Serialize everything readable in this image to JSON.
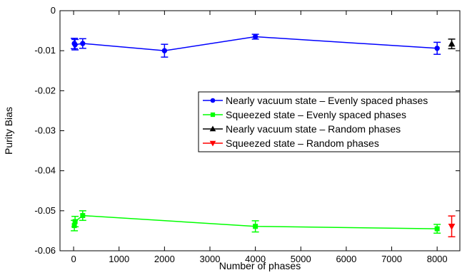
{
  "chart_data": {
    "type": "line",
    "title": "",
    "xlabel": "Number of phases",
    "ylabel": "Purity Bias",
    "xlim": [
      -300,
      8500
    ],
    "ylim": [
      -0.06,
      0
    ],
    "x_ticks": [
      0,
      1000,
      2000,
      3000,
      4000,
      5000,
      6000,
      7000,
      8000
    ],
    "y_ticks": [
      0,
      -0.01,
      -0.02,
      -0.03,
      -0.04,
      -0.05,
      -0.06
    ],
    "x_tick_labels": [
      "0",
      "1000",
      "2000",
      "3000",
      "4000",
      "5000",
      "6000",
      "7000",
      "8000"
    ],
    "y_tick_labels": [
      "0",
      "-0.01",
      "-0.02",
      "-0.03",
      "-0.04",
      "-0.05",
      "-0.06"
    ],
    "grid": false,
    "legend_position": "center-right",
    "series": [
      {
        "name": "Nearly vacuum state – Evenly spaced phases",
        "color": "#0000ff",
        "marker": "circle",
        "line": true,
        "x": [
          16,
          32,
          200,
          2000,
          4000,
          8000
        ],
        "y": [
          -0.0082,
          -0.0085,
          -0.0082,
          -0.01,
          -0.0065,
          -0.0094
        ],
        "err": [
          0.0013,
          0.0013,
          0.0012,
          0.0016,
          0.0006,
          0.0015
        ]
      },
      {
        "name": "Squeezed  state – Evenly spaced phases",
        "color": "#00ff00",
        "marker": "square",
        "line": true,
        "x": [
          16,
          32,
          200,
          4000,
          8000
        ],
        "y": [
          -0.0537,
          -0.0527,
          -0.0512,
          -0.0539,
          -0.0545
        ],
        "err": [
          0.0013,
          0.0013,
          0.0012,
          0.0014,
          0.0011
        ]
      },
      {
        "name": "Nearly vacuum state – Random phases",
        "color": "#000000",
        "marker": "triangle-up",
        "line": false,
        "x": [
          8320
        ],
        "y": [
          -0.0083
        ],
        "err": [
          0.0012
        ]
      },
      {
        "name": "Squeezed state – Random phases",
        "color": "#ff0000",
        "marker": "triangle-down",
        "line": false,
        "x": [
          8320
        ],
        "y": [
          -0.0539
        ],
        "err": [
          0.0026
        ]
      }
    ]
  }
}
